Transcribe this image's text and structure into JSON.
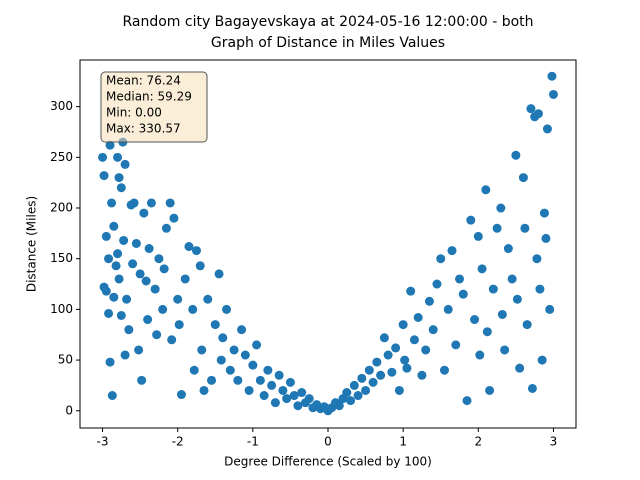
{
  "chart_data": {
    "type": "scatter",
    "title": "Random city Bagayevskaya at 2024-05-16 12:00:00  - both",
    "subtitle": "Graph of Distance in Miles Values",
    "x_label": "Degree Difference (Scaled by 100)",
    "y_label": "Distance (Miles)",
    "annotations": [
      "Mean: 76.24",
      "Median: 59.29",
      "Min: 0.00",
      "Max: 330.57"
    ],
    "color": "#1f77b4",
    "xlim": [
      -3.3,
      3.3
    ],
    "ylim": [
      -17,
      346
    ],
    "xticks": [
      -3,
      -2,
      -1,
      0,
      1,
      2,
      3
    ],
    "yticks": [
      0,
      50,
      100,
      150,
      200,
      250,
      300
    ],
    "x": [
      -3.0,
      -2.98,
      -2.95,
      -2.92,
      -2.9,
      -2.88,
      -2.85,
      -2.82,
      -2.8,
      -2.78,
      -2.75,
      -2.73,
      -2.7,
      -2.98,
      -2.95,
      -2.92,
      -2.9,
      -2.87,
      -2.85,
      -2.8,
      -2.78,
      -2.75,
      -2.72,
      -2.7,
      -2.68,
      -2.65,
      -2.62,
      -2.6,
      -2.58,
      -2.55,
      -2.52,
      -2.5,
      -2.48,
      -2.45,
      -2.42,
      -2.4,
      -2.38,
      -2.35,
      -2.3,
      -2.28,
      -2.25,
      -2.2,
      -2.18,
      -2.15,
      -2.1,
      -2.08,
      -2.05,
      -2.0,
      -1.98,
      -1.95,
      -1.9,
      -1.85,
      -1.8,
      -1.78,
      -1.75,
      -1.7,
      -1.68,
      -1.65,
      -1.6,
      -1.55,
      -1.5,
      -1.45,
      -1.42,
      -1.4,
      -1.35,
      -1.3,
      -1.25,
      -1.2,
      -1.15,
      -1.1,
      -1.05,
      -1.0,
      -0.95,
      -0.9,
      -0.85,
      -0.8,
      -0.75,
      -0.7,
      -0.65,
      -0.6,
      -0.55,
      -0.5,
      -0.45,
      -0.4,
      -0.35,
      -0.3,
      -0.25,
      -0.2,
      -0.15,
      -0.1,
      -0.05,
      0.0,
      0.05,
      0.1,
      0.15,
      0.2,
      0.25,
      0.3,
      0.35,
      0.4,
      0.45,
      0.5,
      0.55,
      0.6,
      0.65,
      0.7,
      0.75,
      0.8,
      0.85,
      0.9,
      0.95,
      1.0,
      1.02,
      1.05,
      1.1,
      1.15,
      1.2,
      1.25,
      1.3,
      1.35,
      1.4,
      1.45,
      1.5,
      1.55,
      1.6,
      1.65,
      1.7,
      1.75,
      1.8,
      1.85,
      1.9,
      1.95,
      2.0,
      2.02,
      2.05,
      2.1,
      2.12,
      2.15,
      2.2,
      2.25,
      2.3,
      2.32,
      2.35,
      2.4,
      2.45,
      2.5,
      2.52,
      2.55,
      2.6,
      2.62,
      2.65,
      2.7,
      2.72,
      2.75,
      2.78,
      2.8,
      2.82,
      2.85,
      2.88,
      2.9,
      2.92,
      2.95,
      2.98,
      3.0
    ],
    "y": [
      250,
      232,
      172,
      150,
      262,
      205,
      182,
      143,
      250,
      230,
      220,
      265,
      243,
      122,
      118,
      96,
      48,
      15,
      112,
      155,
      130,
      94,
      168,
      55,
      110,
      80,
      203,
      145,
      205,
      165,
      60,
      135,
      30,
      195,
      128,
      90,
      160,
      205,
      120,
      75,
      150,
      100,
      140,
      180,
      205,
      70,
      190,
      110,
      85,
      16,
      130,
      162,
      100,
      40,
      158,
      143,
      60,
      20,
      110,
      30,
      85,
      135,
      50,
      72,
      100,
      40,
      60,
      30,
      80,
      55,
      20,
      45,
      65,
      30,
      15,
      40,
      25,
      8,
      35,
      20,
      12,
      28,
      15,
      5,
      18,
      8,
      12,
      3,
      6,
      2,
      4,
      0,
      3,
      8,
      5,
      12,
      18,
      10,
      25,
      15,
      32,
      20,
      40,
      28,
      48,
      35,
      72,
      55,
      38,
      62,
      20,
      85,
      50,
      42,
      118,
      70,
      92,
      35,
      60,
      108,
      80,
      125,
      150,
      40,
      100,
      158,
      65,
      130,
      115,
      10,
      188,
      90,
      172,
      55,
      140,
      218,
      78,
      20,
      120,
      180,
      200,
      95,
      60,
      160,
      130,
      252,
      110,
      42,
      230,
      180,
      85,
      298,
      22,
      290,
      150,
      293,
      120,
      50,
      195,
      170,
      278,
      100,
      330,
      312
    ]
  }
}
